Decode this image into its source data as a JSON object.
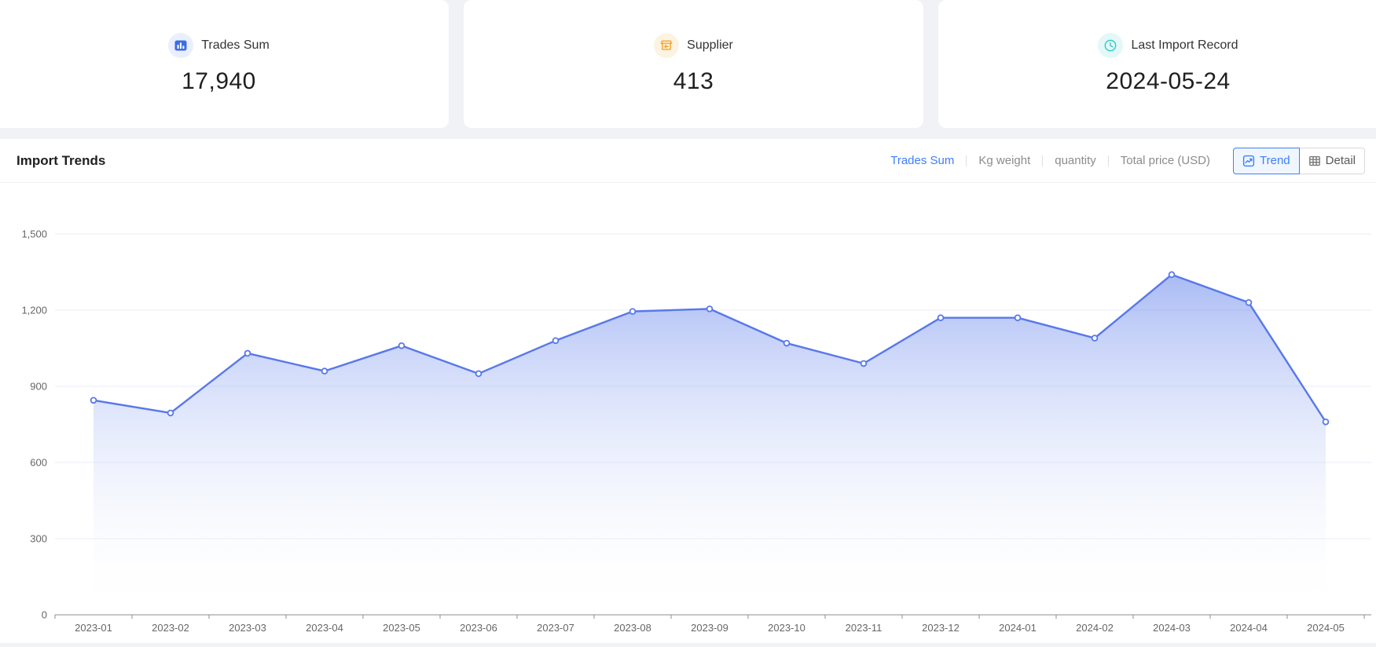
{
  "cards": [
    {
      "label": "Trades Sum",
      "value": "17,940",
      "icon": "bar-chart-icon",
      "icon_color": "#3D6BE8",
      "icon_bg": "#E9EFFD"
    },
    {
      "label": "Supplier",
      "value": "413",
      "icon": "store-icon",
      "icon_color": "#F5A429",
      "icon_bg": "#FCF3E2"
    },
    {
      "label": "Last Import Record",
      "value": "2024-05-24",
      "icon": "clock-icon",
      "icon_color": "#33C9C5",
      "icon_bg": "#E3F8F7"
    }
  ],
  "section": {
    "title": "Import Trends",
    "tabs": [
      {
        "label": "Trades Sum",
        "active": true
      },
      {
        "label": "Kg weight",
        "active": false
      },
      {
        "label": "quantity",
        "active": false
      },
      {
        "label": "Total price (USD)",
        "active": false
      }
    ],
    "view_toggle": [
      {
        "label": "Trend",
        "icon": "trend-chart-icon",
        "active": true
      },
      {
        "label": "Detail",
        "icon": "table-icon",
        "active": false
      }
    ]
  },
  "chart_data": {
    "type": "area",
    "title": "Import Trends",
    "x": [
      "2023-01",
      "2023-02",
      "2023-03",
      "2023-04",
      "2023-05",
      "2023-06",
      "2023-07",
      "2023-08",
      "2023-09",
      "2023-10",
      "2023-11",
      "2023-12",
      "2024-01",
      "2024-02",
      "2024-03",
      "2024-04",
      "2024-05"
    ],
    "values": [
      845,
      795,
      1030,
      960,
      1060,
      950,
      1080,
      1195,
      1205,
      1070,
      990,
      1170,
      1170,
      1090,
      1340,
      1230,
      760
    ],
    "ylim": [
      0,
      1500
    ],
    "y_ticks": [
      0,
      300,
      600,
      900,
      1200,
      1500
    ],
    "y_tick_labels": [
      "0",
      "300",
      "600",
      "900",
      "1,200",
      "1,500"
    ],
    "grid": true,
    "legend": "none",
    "line_color": "#5878EA",
    "marker": "open-circle",
    "area_gradient_top": "rgba(85,120,234,0.5)",
    "area_gradient_bottom": "rgba(255,255,255,0)",
    "grid_color": "#EBEEF5",
    "axis_color": "#8C8C8C",
    "axis_label_color": "#666666"
  },
  "colors": {
    "page_bg": "#F0F2F5",
    "panel_bg": "#FFFFFF",
    "accent_blue": "#3D7FFF",
    "inactive_gray": "#8C8C8C"
  }
}
